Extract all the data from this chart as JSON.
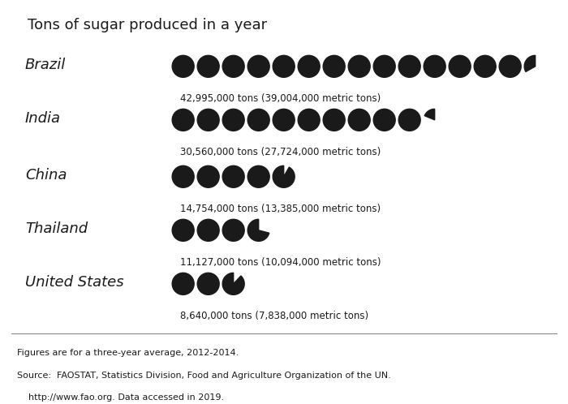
{
  "title": "Tons of sugar produced in a year",
  "background_color": "#edf2e0",
  "outer_background": "#ffffff",
  "circle_color": "#1a1a1a",
  "countries": [
    "Brazil",
    "India",
    "China",
    "Thailand",
    "United States"
  ],
  "values_tons": [
    42995000,
    30560000,
    14754000,
    11127000,
    8640000
  ],
  "labels": [
    "42,995,000 tons (39,004,000 metric tons)",
    "30,560,000 tons (27,724,000 metric tons)",
    "14,754,000 tons (13,385,000 metric tons)",
    "11,127,000 tons (10,094,000 metric tons)",
    "8,640,000 tons (7,838,000 metric tons)"
  ],
  "unit_value": 3000000,
  "footer_lines": [
    "Figures are for a three-year average, 2012-2014.",
    "Source:  FAOSTAT, Statistics Division, Food and Agriculture Organization of the UN.",
    "    http://www.fao.org. Data accessed in 2019."
  ],
  "title_fontsize": 13,
  "country_fontsize": 13,
  "label_fontsize": 8.5,
  "footer_fontsize": 8
}
